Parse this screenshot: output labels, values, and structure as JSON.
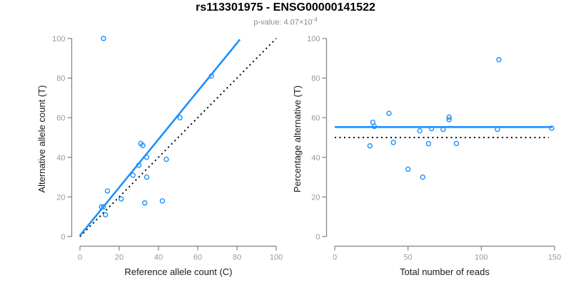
{
  "header": {
    "title": "rs113301975 - ENSG00000141522",
    "p_value_text": "p-value: 4.07×10",
    "p_value_exponent": "-4"
  },
  "colors": {
    "accent": "#1E90FF",
    "reference_line": "#000000",
    "axis_line": "#808080",
    "tick_label": "#999999",
    "axis_label": "#1a1a1a",
    "title": "#000000",
    "subtitle": "#8c8c8c"
  },
  "chart_data": [
    {
      "type": "scatter",
      "xlabel": "Reference allele count (C)",
      "ylabel": "Alternative allele count (T)",
      "xlim": [
        0,
        100
      ],
      "ylim": [
        0,
        100
      ],
      "xticks": [
        0,
        20,
        40,
        60,
        80,
        100
      ],
      "yticks": [
        0,
        20,
        40,
        60,
        80,
        100
      ],
      "grid": false,
      "points": [
        [
          12,
          100
        ],
        [
          67,
          81
        ],
        [
          51,
          60
        ],
        [
          31,
          47
        ],
        [
          32,
          46
        ],
        [
          34,
          40
        ],
        [
          44,
          39
        ],
        [
          30,
          36
        ],
        [
          34,
          30
        ],
        [
          27,
          31
        ],
        [
          21,
          19
        ],
        [
          14,
          23
        ],
        [
          42,
          18
        ],
        [
          33,
          17
        ],
        [
          11,
          15
        ],
        [
          12,
          15
        ],
        [
          13,
          11
        ]
      ],
      "lines": [
        {
          "name": "identity-line",
          "style": "dotted",
          "color": "reference_line",
          "from": [
            0,
            0
          ],
          "to": [
            100,
            100
          ]
        },
        {
          "name": "fit-line",
          "style": "solid",
          "color": "accent",
          "from": [
            0,
            0.5
          ],
          "to": [
            81.5,
            99.5
          ]
        }
      ]
    },
    {
      "type": "scatter",
      "xlabel": "Total number of reads",
      "ylabel": "Percentage alternative (T)",
      "xlim": [
        0,
        150
      ],
      "ylim": [
        0,
        100
      ],
      "xticks": [
        0,
        50,
        100,
        150
      ],
      "yticks": [
        0,
        20,
        40,
        60,
        80,
        100
      ],
      "grid": false,
      "points": [
        [
          112,
          89.3
        ],
        [
          148,
          54.7
        ],
        [
          111,
          54.1
        ],
        [
          78,
          60.3
        ],
        [
          78,
          59.0
        ],
        [
          74,
          54.1
        ],
        [
          83,
          47.0
        ],
        [
          66,
          54.5
        ],
        [
          64,
          46.9
        ],
        [
          58,
          53.4
        ],
        [
          40,
          47.5
        ],
        [
          37,
          62.2
        ],
        [
          60,
          30.0
        ],
        [
          50,
          34.0
        ],
        [
          26,
          57.7
        ],
        [
          27,
          55.6
        ],
        [
          24,
          45.8
        ]
      ],
      "lines": [
        {
          "name": "reference-line",
          "style": "dotted",
          "color": "reference_line",
          "from": [
            0,
            50
          ],
          "to": [
            146,
            50
          ]
        },
        {
          "name": "mean-line",
          "style": "solid",
          "color": "accent",
          "from": [
            0,
            55.3
          ],
          "to": [
            148.5,
            55.3
          ]
        }
      ]
    }
  ]
}
